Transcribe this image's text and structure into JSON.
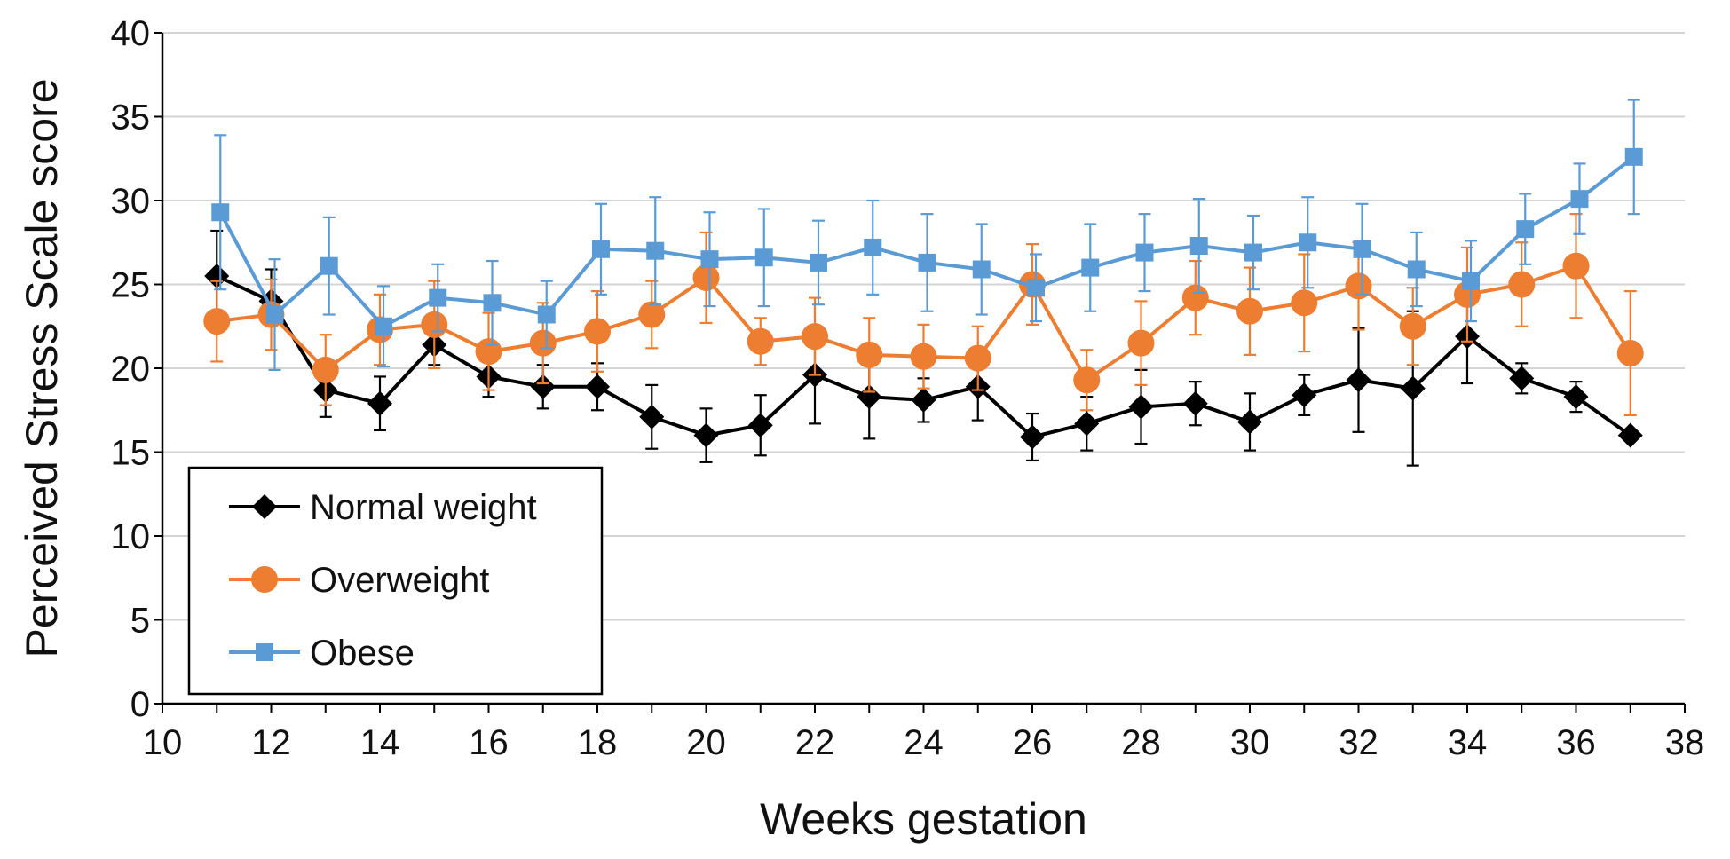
{
  "chart_data": {
    "type": "line",
    "title": "",
    "xlabel": "Weeks gestation",
    "ylabel": "Perceived Stress Scale score",
    "xlim": [
      10,
      38
    ],
    "ylim": [
      0,
      40
    ],
    "x_ticks": [
      "10",
      "12",
      "14",
      "16",
      "18",
      "20",
      "22",
      "24",
      "26",
      "28",
      "30",
      "32",
      "34",
      "36",
      "38"
    ],
    "y_ticks": [
      "0",
      "5",
      "10",
      "15",
      "20",
      "25",
      "30",
      "35",
      "40"
    ],
    "grid": "horizontal",
    "legend_position": "bottom-left",
    "series": [
      {
        "name": "Normal weight",
        "color": "#000000",
        "marker": "diamond",
        "points": [
          {
            "x": 11,
            "y": 25.5,
            "err_low": 2.3,
            "err_high": 2.7
          },
          {
            "x": 12,
            "y": 24.0,
            "err_low": 1.5,
            "err_high": 1.9
          },
          {
            "x": 13,
            "y": 18.7,
            "err_low": 1.6,
            "err_high": 1.6
          },
          {
            "x": 14,
            "y": 17.9,
            "err_low": 1.6,
            "err_high": 1.6
          },
          {
            "x": 15,
            "y": 21.4,
            "err_low": 1.2,
            "err_high": 1.2
          },
          {
            "x": 16,
            "y": 19.5,
            "err_low": 1.2,
            "err_high": 1.2
          },
          {
            "x": 17,
            "y": 18.9,
            "err_low": 1.3,
            "err_high": 1.3
          },
          {
            "x": 18,
            "y": 18.9,
            "err_low": 1.4,
            "err_high": 1.4
          },
          {
            "x": 19,
            "y": 17.1,
            "err_low": 1.9,
            "err_high": 1.9
          },
          {
            "x": 20,
            "y": 16.0,
            "err_low": 1.6,
            "err_high": 1.6
          },
          {
            "x": 21,
            "y": 16.6,
            "err_low": 1.8,
            "err_high": 1.8
          },
          {
            "x": 22,
            "y": 19.6,
            "err_low": 2.9,
            "err_high": 2.9
          },
          {
            "x": 23,
            "y": 18.3,
            "err_low": 2.5,
            "err_high": 2.5
          },
          {
            "x": 24,
            "y": 18.1,
            "err_low": 1.3,
            "err_high": 1.3
          },
          {
            "x": 25,
            "y": 18.9,
            "err_low": 2.0,
            "err_high": 2.0
          },
          {
            "x": 26,
            "y": 15.9,
            "err_low": 1.4,
            "err_high": 1.4
          },
          {
            "x": 27,
            "y": 16.7,
            "err_low": 1.6,
            "err_high": 1.6
          },
          {
            "x": 28,
            "y": 17.7,
            "err_low": 2.2,
            "err_high": 2.2
          },
          {
            "x": 29,
            "y": 17.9,
            "err_low": 1.3,
            "err_high": 1.3
          },
          {
            "x": 30,
            "y": 16.8,
            "err_low": 1.7,
            "err_high": 1.7
          },
          {
            "x": 31,
            "y": 18.4,
            "err_low": 1.2,
            "err_high": 1.2
          },
          {
            "x": 32,
            "y": 19.3,
            "err_low": 3.1,
            "err_high": 3.1
          },
          {
            "x": 33,
            "y": 18.8,
            "err_low": 4.6,
            "err_high": 4.6
          },
          {
            "x": 34,
            "y": 21.9,
            "err_low": 2.8,
            "err_high": 2.8
          },
          {
            "x": 35,
            "y": 19.4,
            "err_low": 0.9,
            "err_high": 0.9
          },
          {
            "x": 36,
            "y": 18.3,
            "err_low": 0.9,
            "err_high": 0.9
          },
          {
            "x": 37,
            "y": 16.0,
            "err_low": 0.3,
            "err_high": 0.3
          }
        ]
      },
      {
        "name": "Overweight",
        "color": "#ED7D31",
        "marker": "circle",
        "points": [
          {
            "x": 11,
            "y": 22.8,
            "err_low": 2.4,
            "err_high": 2.4
          },
          {
            "x": 12,
            "y": 23.2,
            "err_low": 2.1,
            "err_high": 2.1
          },
          {
            "x": 13,
            "y": 19.9,
            "err_low": 2.1,
            "err_high": 2.1
          },
          {
            "x": 14,
            "y": 22.3,
            "err_low": 2.1,
            "err_high": 2.1
          },
          {
            "x": 15,
            "y": 22.6,
            "err_low": 2.6,
            "err_high": 2.6
          },
          {
            "x": 16,
            "y": 21.0,
            "err_low": 2.3,
            "err_high": 2.3
          },
          {
            "x": 17,
            "y": 21.5,
            "err_low": 2.4,
            "err_high": 2.4
          },
          {
            "x": 18,
            "y": 22.2,
            "err_low": 2.4,
            "err_high": 2.4
          },
          {
            "x": 19,
            "y": 23.2,
            "err_low": 2.0,
            "err_high": 2.0
          },
          {
            "x": 20,
            "y": 25.4,
            "err_low": 2.7,
            "err_high": 2.7
          },
          {
            "x": 21,
            "y": 21.6,
            "err_low": 1.4,
            "err_high": 1.4
          },
          {
            "x": 22,
            "y": 21.9,
            "err_low": 2.3,
            "err_high": 2.3
          },
          {
            "x": 23,
            "y": 20.8,
            "err_low": 2.2,
            "err_high": 2.2
          },
          {
            "x": 24,
            "y": 20.7,
            "err_low": 1.9,
            "err_high": 1.9
          },
          {
            "x": 25,
            "y": 20.6,
            "err_low": 1.9,
            "err_high": 1.9
          },
          {
            "x": 26,
            "y": 25.0,
            "err_low": 2.4,
            "err_high": 2.4
          },
          {
            "x": 27,
            "y": 19.3,
            "err_low": 1.8,
            "err_high": 1.8
          },
          {
            "x": 28,
            "y": 21.5,
            "err_low": 2.5,
            "err_high": 2.5
          },
          {
            "x": 29,
            "y": 24.2,
            "err_low": 2.2,
            "err_high": 2.2
          },
          {
            "x": 30,
            "y": 23.4,
            "err_low": 2.6,
            "err_high": 2.6
          },
          {
            "x": 31,
            "y": 23.9,
            "err_low": 2.9,
            "err_high": 2.9
          },
          {
            "x": 32,
            "y": 24.9,
            "err_low": 2.6,
            "err_high": 2.6
          },
          {
            "x": 33,
            "y": 22.5,
            "err_low": 2.3,
            "err_high": 2.3
          },
          {
            "x": 34,
            "y": 24.4,
            "err_low": 2.8,
            "err_high": 2.8
          },
          {
            "x": 35,
            "y": 25.0,
            "err_low": 2.5,
            "err_high": 2.5
          },
          {
            "x": 36,
            "y": 26.1,
            "err_low": 3.1,
            "err_high": 3.1
          },
          {
            "x": 37,
            "y": 20.9,
            "err_low": 3.7,
            "err_high": 3.7
          }
        ]
      },
      {
        "name": "Obese",
        "color": "#5B9BD5",
        "marker": "square",
        "points": [
          {
            "x": 11,
            "y": 29.3,
            "err_low": 4.6,
            "err_high": 4.6
          },
          {
            "x": 12,
            "y": 23.2,
            "err_low": 3.3,
            "err_high": 3.3
          },
          {
            "x": 13,
            "y": 26.1,
            "err_low": 2.9,
            "err_high": 2.9
          },
          {
            "x": 14,
            "y": 22.5,
            "err_low": 2.4,
            "err_high": 2.4
          },
          {
            "x": 15,
            "y": 24.2,
            "err_low": 2.0,
            "err_high": 2.0
          },
          {
            "x": 16,
            "y": 23.9,
            "err_low": 2.5,
            "err_high": 2.5
          },
          {
            "x": 17,
            "y": 23.2,
            "err_low": 2.0,
            "err_high": 2.0
          },
          {
            "x": 18,
            "y": 27.1,
            "err_low": 2.7,
            "err_high": 2.7
          },
          {
            "x": 19,
            "y": 27.0,
            "err_low": 3.2,
            "err_high": 3.2
          },
          {
            "x": 20,
            "y": 26.5,
            "err_low": 2.8,
            "err_high": 2.8
          },
          {
            "x": 21,
            "y": 26.6,
            "err_low": 2.9,
            "err_high": 2.9
          },
          {
            "x": 22,
            "y": 26.3,
            "err_low": 2.5,
            "err_high": 2.5
          },
          {
            "x": 23,
            "y": 27.2,
            "err_low": 2.8,
            "err_high": 2.8
          },
          {
            "x": 24,
            "y": 26.3,
            "err_low": 2.9,
            "err_high": 2.9
          },
          {
            "x": 25,
            "y": 25.9,
            "err_low": 2.7,
            "err_high": 2.7
          },
          {
            "x": 26,
            "y": 24.8,
            "err_low": 2.0,
            "err_high": 2.0
          },
          {
            "x": 27,
            "y": 26.0,
            "err_low": 2.6,
            "err_high": 2.6
          },
          {
            "x": 28,
            "y": 26.9,
            "err_low": 2.3,
            "err_high": 2.3
          },
          {
            "x": 29,
            "y": 27.3,
            "err_low": 2.8,
            "err_high": 2.8
          },
          {
            "x": 30,
            "y": 26.9,
            "err_low": 2.2,
            "err_high": 2.2
          },
          {
            "x": 31,
            "y": 27.5,
            "err_low": 2.7,
            "err_high": 2.7
          },
          {
            "x": 32,
            "y": 27.1,
            "err_low": 2.7,
            "err_high": 2.7
          },
          {
            "x": 33,
            "y": 25.9,
            "err_low": 2.2,
            "err_high": 2.2
          },
          {
            "x": 34,
            "y": 25.2,
            "err_low": 2.4,
            "err_high": 2.4
          },
          {
            "x": 35,
            "y": 28.3,
            "err_low": 2.1,
            "err_high": 2.1
          },
          {
            "x": 36,
            "y": 30.1,
            "err_low": 2.1,
            "err_high": 2.1
          },
          {
            "x": 37,
            "y": 32.6,
            "err_low": 3.4,
            "err_high": 3.4
          }
        ]
      }
    ]
  }
}
